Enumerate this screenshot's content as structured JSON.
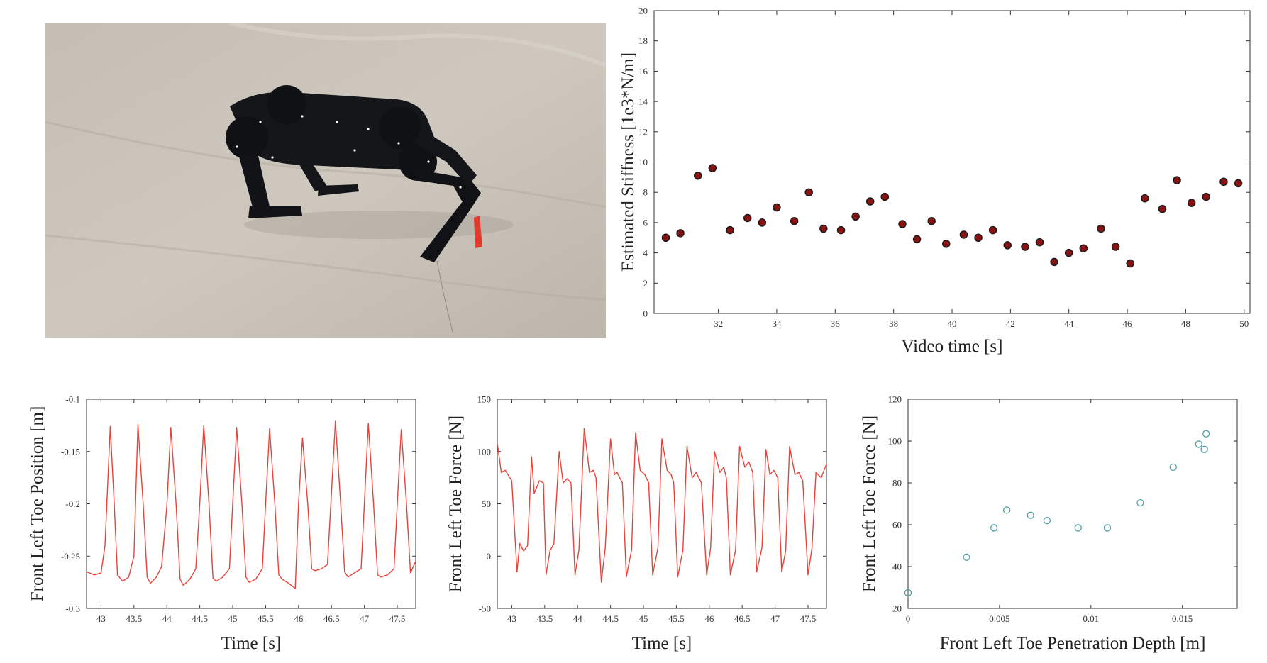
{
  "photo": {
    "caption": "quadruped-robot-walking-on-sand"
  },
  "colors": {
    "axis": "#333333",
    "trace": "#e8433a",
    "marker_fill": "#8a1212",
    "marker_edge": "#1a1a1a",
    "hollow_marker": "#4fa0a6"
  },
  "chart_data": [
    {
      "type": "scatter",
      "xlabel": "Video time [s]",
      "ylabel": "Estimated Stiffness [1e3*N/m]",
      "xlim": [
        29.8,
        50.2
      ],
      "ylim": [
        0,
        20
      ],
      "xticks": [
        32,
        34,
        36,
        38,
        40,
        42,
        44,
        46,
        48,
        50
      ],
      "yticks": [
        0,
        2,
        4,
        6,
        8,
        10,
        12,
        14,
        16,
        18,
        20
      ],
      "x": [
        30.2,
        30.7,
        31.3,
        31.8,
        32.4,
        33.0,
        33.5,
        34.0,
        34.6,
        35.1,
        35.6,
        36.2,
        36.7,
        37.2,
        37.7,
        38.3,
        38.8,
        39.3,
        39.8,
        40.4,
        40.9,
        41.4,
        41.9,
        42.5,
        43.0,
        43.5,
        44.0,
        44.5,
        45.1,
        45.6,
        46.1,
        46.6,
        47.2,
        47.7,
        48.2,
        48.7,
        49.3,
        49.8
      ],
      "y": [
        5.0,
        5.3,
        9.1,
        9.6,
        5.5,
        6.3,
        6.0,
        7.0,
        6.1,
        8.0,
        5.6,
        5.5,
        6.4,
        7.4,
        7.7,
        5.9,
        4.9,
        6.1,
        4.6,
        5.2,
        5.0,
        5.5,
        4.5,
        4.4,
        4.7,
        3.4,
        4.0,
        4.3,
        5.6,
        4.4,
        3.3,
        7.6,
        6.9,
        8.8,
        7.3,
        7.7,
        8.7,
        8.6
      ]
    },
    {
      "type": "line",
      "xlabel": "Time [s]",
      "ylabel": "Front Left Toe Position [m]",
      "xlim": [
        42.78,
        47.78
      ],
      "ylim": [
        -0.3,
        -0.1
      ],
      "xticks": [
        43,
        43.5,
        44,
        44.5,
        45,
        45.5,
        46,
        46.5,
        47,
        47.5
      ],
      "yticks": [
        -0.1,
        -0.15,
        -0.2,
        -0.25,
        -0.3
      ],
      "ytick_labels": [
        "-0.1",
        "-0.15",
        "-0.2",
        "-0.25",
        "-0.3"
      ],
      "series": [
        {
          "name": "toe-position",
          "x": [
            42.78,
            42.9,
            43.0,
            43.06,
            43.14,
            43.2,
            43.25,
            43.33,
            43.42,
            43.5,
            43.56,
            43.64,
            43.7,
            43.75,
            43.84,
            43.92,
            44.0,
            44.06,
            44.14,
            44.2,
            44.25,
            44.35,
            44.44,
            44.5,
            44.56,
            44.64,
            44.7,
            44.75,
            44.85,
            44.95,
            45.0,
            45.06,
            45.14,
            45.2,
            45.25,
            45.35,
            45.45,
            45.5,
            45.56,
            45.64,
            45.7,
            45.75,
            45.85,
            45.95,
            46.0,
            46.06,
            46.14,
            46.2,
            46.25,
            46.35,
            46.44,
            46.5,
            46.56,
            46.64,
            46.7,
            46.75,
            46.85,
            46.95,
            47.0,
            47.06,
            47.14,
            47.2,
            47.25,
            47.35,
            47.45,
            47.5,
            47.56,
            47.64,
            47.7,
            47.78
          ],
          "y": [
            -0.265,
            -0.268,
            -0.266,
            -0.24,
            -0.126,
            -0.2,
            -0.268,
            -0.274,
            -0.27,
            -0.25,
            -0.124,
            -0.2,
            -0.27,
            -0.276,
            -0.27,
            -0.26,
            -0.202,
            -0.127,
            -0.2,
            -0.272,
            -0.278,
            -0.272,
            -0.262,
            -0.2,
            -0.125,
            -0.2,
            -0.271,
            -0.274,
            -0.27,
            -0.262,
            -0.2,
            -0.127,
            -0.2,
            -0.27,
            -0.275,
            -0.272,
            -0.262,
            -0.2,
            -0.128,
            -0.2,
            -0.268,
            -0.272,
            -0.276,
            -0.281,
            -0.2,
            -0.137,
            -0.2,
            -0.262,
            -0.264,
            -0.262,
            -0.258,
            -0.19,
            -0.121,
            -0.2,
            -0.265,
            -0.27,
            -0.266,
            -0.262,
            -0.2,
            -0.123,
            -0.2,
            -0.268,
            -0.27,
            -0.268,
            -0.262,
            -0.2,
            -0.129,
            -0.2,
            -0.266,
            -0.255
          ]
        }
      ]
    },
    {
      "type": "line",
      "xlabel": "Time [s]",
      "ylabel": "Front Left Toe Force [N]",
      "xlim": [
        42.78,
        47.78
      ],
      "ylim": [
        -50,
        150
      ],
      "xticks": [
        43,
        43.5,
        44,
        44.5,
        45,
        45.5,
        46,
        46.5,
        47,
        47.5
      ],
      "yticks": [
        -50,
        0,
        50,
        100,
        150
      ],
      "series": [
        {
          "name": "toe-force",
          "x": [
            42.78,
            42.84,
            42.9,
            43.0,
            43.08,
            43.12,
            43.18,
            43.24,
            43.3,
            43.34,
            43.42,
            43.48,
            43.52,
            43.58,
            43.64,
            43.72,
            43.78,
            43.84,
            43.9,
            43.96,
            44.02,
            44.1,
            44.18,
            44.24,
            44.28,
            44.36,
            44.42,
            44.5,
            44.56,
            44.6,
            44.68,
            44.74,
            44.82,
            44.88,
            44.95,
            45.02,
            45.08,
            45.14,
            45.22,
            45.28,
            45.36,
            45.42,
            45.46,
            45.52,
            45.6,
            45.66,
            45.74,
            45.8,
            45.88,
            45.96,
            46.02,
            46.08,
            46.16,
            46.22,
            46.26,
            46.32,
            46.4,
            46.46,
            46.54,
            46.6,
            46.66,
            46.72,
            46.8,
            46.86,
            46.92,
            46.98,
            47.04,
            47.1,
            47.16,
            47.22,
            47.3,
            47.36,
            47.42,
            47.5,
            47.56,
            47.62,
            47.7,
            47.78
          ],
          "y": [
            108,
            80,
            82,
            72,
            -15,
            12,
            5,
            10,
            95,
            60,
            72,
            70,
            -18,
            5,
            12,
            100,
            70,
            74,
            70,
            -18,
            6,
            122,
            80,
            82,
            75,
            -25,
            8,
            112,
            78,
            80,
            70,
            -20,
            6,
            118,
            82,
            78,
            70,
            -18,
            8,
            112,
            82,
            78,
            70,
            -20,
            6,
            105,
            75,
            80,
            70,
            -18,
            8,
            100,
            80,
            85,
            75,
            -18,
            6,
            105,
            85,
            90,
            80,
            -15,
            8,
            102,
            78,
            82,
            75,
            -15,
            5,
            105,
            78,
            80,
            72,
            -18,
            8,
            80,
            75,
            88
          ]
        }
      ]
    },
    {
      "type": "scatter",
      "xlabel": "Front Left Toe Penetration Depth [m]",
      "ylabel": "Front Left Toe Force [N]",
      "xlim": [
        0,
        0.018
      ],
      "ylim": [
        20,
        120
      ],
      "xticks": [
        0,
        0.005,
        0.01,
        0.015
      ],
      "xtick_labels": [
        "0",
        "0.005",
        "0.01",
        "0.015"
      ],
      "yticks": [
        20,
        40,
        60,
        80,
        100,
        120
      ],
      "x": [
        0.0,
        0.0032,
        0.0047,
        0.0054,
        0.0067,
        0.0076,
        0.0093,
        0.0109,
        0.0127,
        0.0145,
        0.0159,
        0.0162,
        0.0163
      ],
      "y": [
        27.5,
        44.5,
        58.5,
        67.0,
        64.5,
        62.0,
        58.5,
        58.5,
        70.5,
        87.5,
        98.5,
        96.0,
        103.5
      ]
    }
  ]
}
